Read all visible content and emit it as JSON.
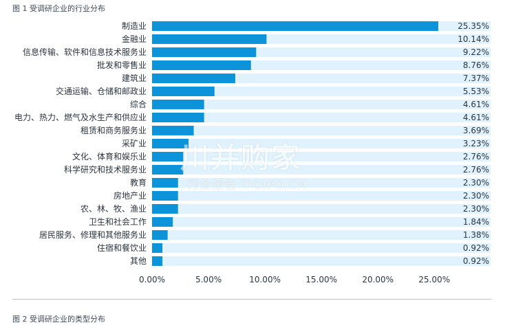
{
  "figure": {
    "title": "图 1 受调研企业的行业分布",
    "next_title": "图 2 受调研企业的类型分布"
  },
  "watermark": {
    "main": "川并购家",
    "sub": "行业报告 IPOIPO.CN"
  },
  "colors": {
    "bar": "#0d93d9",
    "track": "#dff2fd",
    "text": "#2b3540"
  },
  "chart_data": {
    "type": "bar",
    "orientation": "horizontal",
    "categories": [
      "制造业",
      "金融业",
      "信息传输、软件和信息技术服务业",
      "批发和零售业",
      "建筑业",
      "交通运输、仓储和邮政业",
      "综合",
      "电力、热力、燃气及水生产和供应业",
      "租赁和商务服务业",
      "采矿业",
      "文化、体育和娱乐业",
      "科学研究和技术服务业",
      "教育",
      "房地产业",
      "农、林、牧、渔业",
      "卫生和社会工作",
      "居民服务、修理和其他服务业",
      "住宿和餐饮业",
      "其他"
    ],
    "values": [
      25.35,
      10.14,
      9.22,
      8.76,
      7.37,
      5.53,
      4.61,
      4.61,
      3.69,
      3.23,
      2.76,
      2.76,
      2.3,
      2.3,
      2.3,
      1.84,
      1.38,
      0.92,
      0.92
    ],
    "value_labels": [
      "25.35%",
      "10.14%",
      "9.22%",
      "8.76%",
      "7.37%",
      "5.53%",
      "4.61%",
      "4.61%",
      "3.69%",
      "3.23%",
      "2.76%",
      "2.76%",
      "2.30%",
      "2.30%",
      "2.30%",
      "1.84%",
      "1.38%",
      "0.92%",
      "0.92%"
    ],
    "x_ticks": [
      "0.00%",
      "5.00%",
      "10.00%",
      "15.00%",
      "20.00%",
      "25.00%"
    ],
    "xlim": [
      0,
      25.35
    ],
    "grid": false,
    "legend": "none"
  }
}
